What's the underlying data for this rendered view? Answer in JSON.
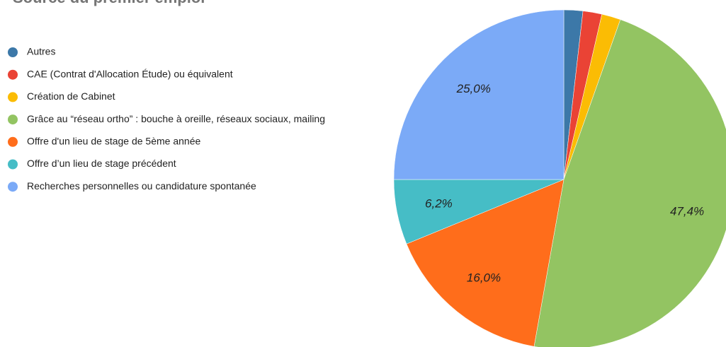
{
  "chart_data": {
    "type": "pie",
    "title": "Source du premier emploi",
    "categories": [
      "Autres",
      "CAE (Contrat d'Allocation Étude) ou équivalent",
      "Création de Cabinet",
      "Grâce au “réseau ortho” : bouche à oreille, réseaux sociaux, mailing",
      "Offre d'un lieu de stage de 5ème année",
      "Offre d’un lieu de stage précédent",
      "Recherches personnelles ou candidature spontanée"
    ],
    "values": [
      1.8,
      1.8,
      1.8,
      47.4,
      16.0,
      6.2,
      25.0
    ],
    "value_labels": [
      null,
      null,
      null,
      "47,4%",
      "16,0%",
      "6,2%",
      "25,0%"
    ],
    "colors": [
      "#3c78a8",
      "#ea4335",
      "#fbbc04",
      "#93c462",
      "#ff6d1b",
      "#46bdc6",
      "#7baaf7"
    ],
    "legend": "left"
  }
}
